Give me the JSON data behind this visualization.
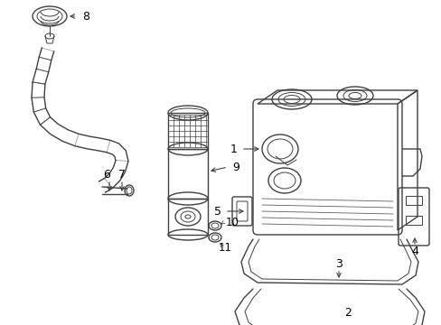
{
  "background_color": "#ffffff",
  "line_color": "#404040",
  "text_color": "#000000",
  "figsize": [
    4.89,
    3.6
  ],
  "dpi": 100,
  "xlim": [
    0,
    489
  ],
  "ylim": [
    0,
    360
  ]
}
